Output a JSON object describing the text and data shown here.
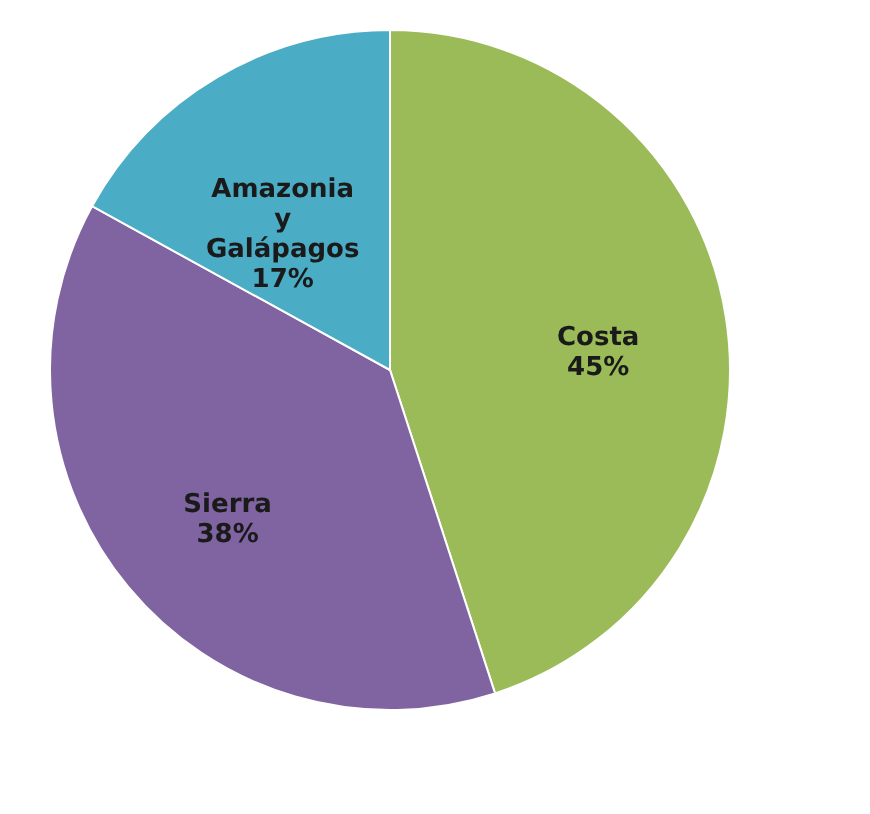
{
  "chart_data": {
    "type": "pie",
    "categories": [
      "Costa",
      "Sierra",
      "Amazonia y Galápagos"
    ],
    "values": [
      45,
      38,
      17
    ],
    "colors": [
      "#9bbb59",
      "#8064a2",
      "#4bacc6"
    ],
    "value_labels": [
      "45%",
      "38%",
      "17%"
    ],
    "legend": false
  }
}
